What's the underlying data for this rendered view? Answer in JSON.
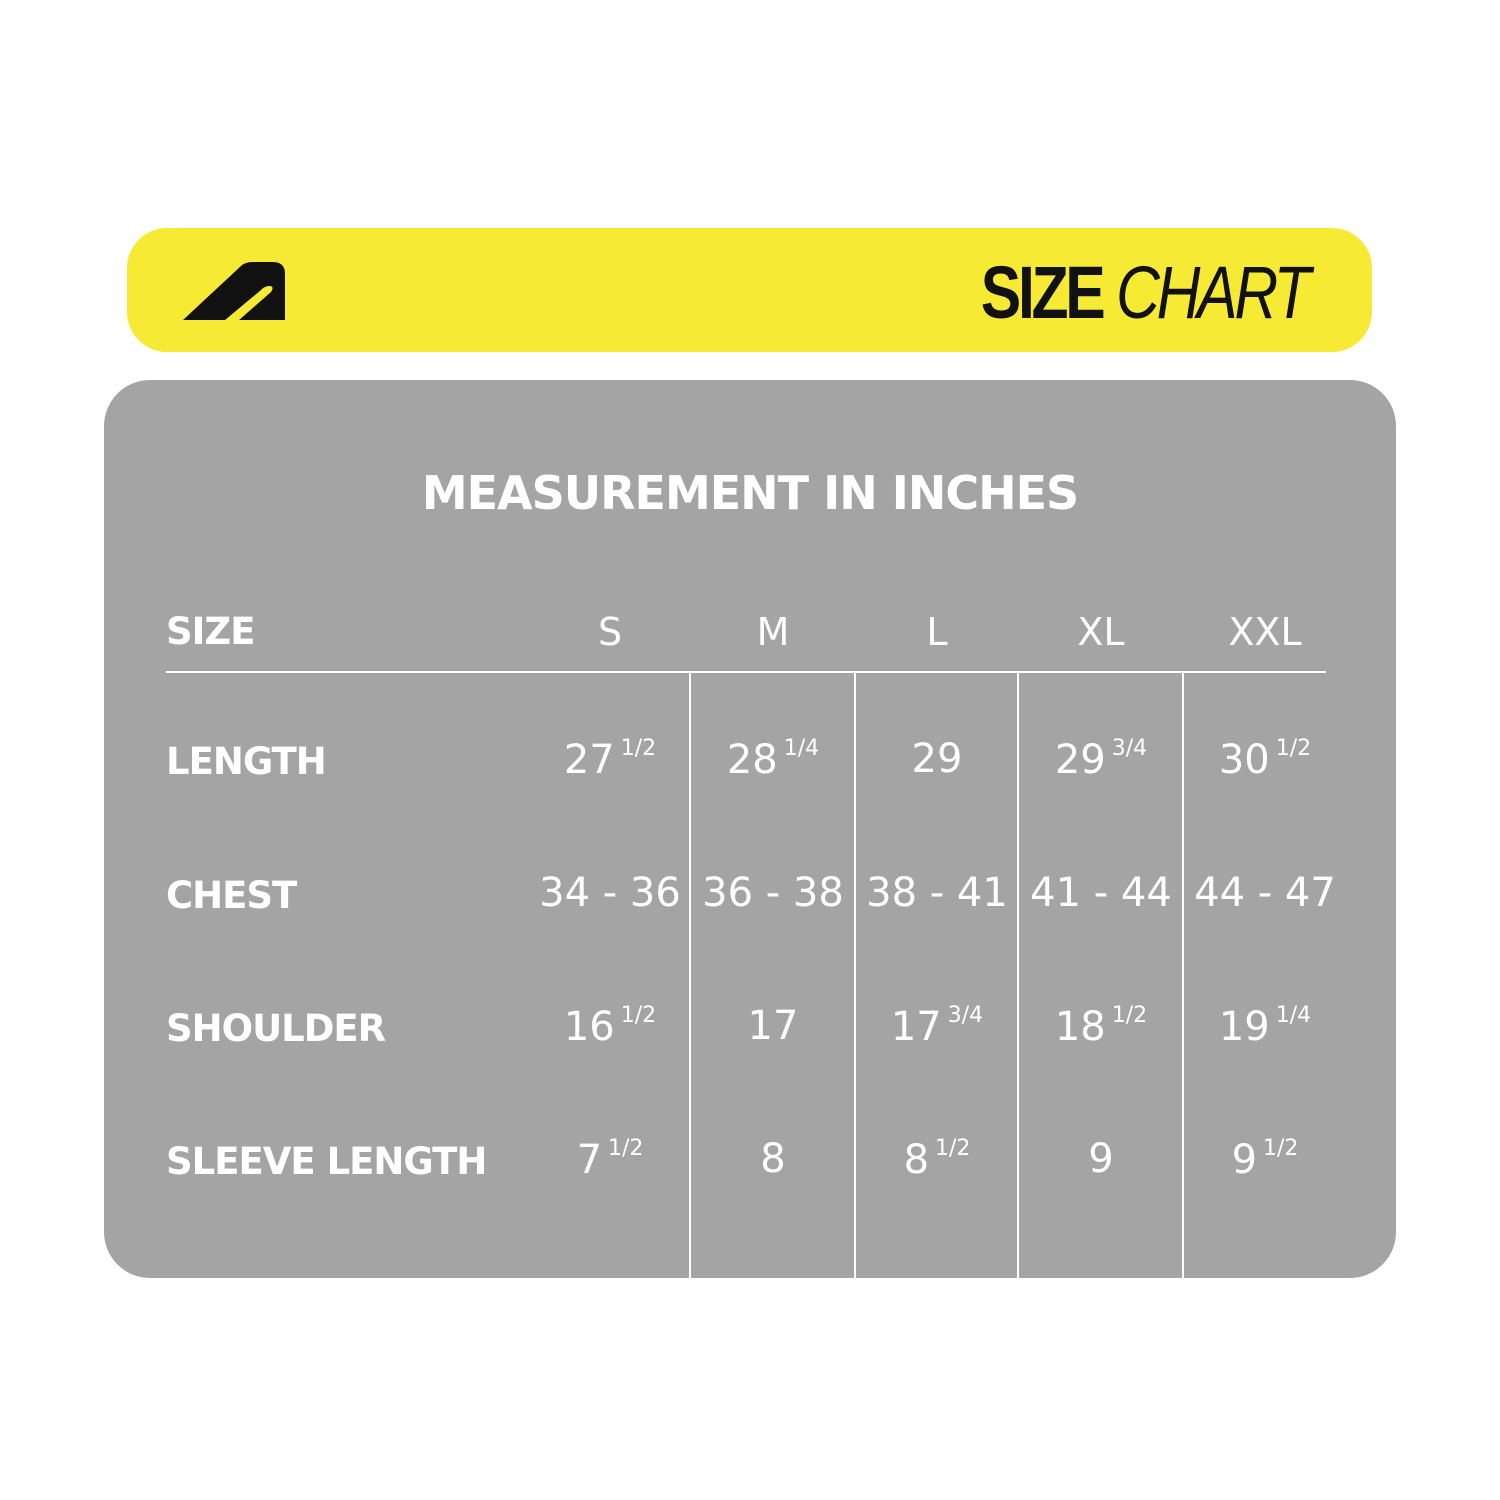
{
  "banner": {
    "title_bold": "SIZE",
    "title_italic": "CHART",
    "logo": "brand-a-logo",
    "color": "#f6ea34"
  },
  "panel": {
    "color": "#a4a4a4",
    "heading": "MEASUREMENT IN INCHES"
  },
  "table": {
    "header_label": "SIZE",
    "sizes": [
      "S",
      "M",
      "L",
      "XL",
      "XXL"
    ],
    "rows": [
      {
        "label": "LENGTH",
        "values": [
          {
            "whole": "27",
            "frac": "1/2"
          },
          {
            "whole": "28",
            "frac": "1/4"
          },
          {
            "whole": "29",
            "frac": ""
          },
          {
            "whole": "29",
            "frac": "3/4"
          },
          {
            "whole": "30",
            "frac": "1/2"
          }
        ]
      },
      {
        "label": "CHEST",
        "values": [
          {
            "whole": "34 - 36",
            "frac": ""
          },
          {
            "whole": "36 - 38",
            "frac": ""
          },
          {
            "whole": "38 - 41",
            "frac": ""
          },
          {
            "whole": "41 - 44",
            "frac": ""
          },
          {
            "whole": "44 - 47",
            "frac": ""
          }
        ]
      },
      {
        "label": "SHOULDER",
        "values": [
          {
            "whole": "16",
            "frac": "1/2"
          },
          {
            "whole": "17",
            "frac": ""
          },
          {
            "whole": "17",
            "frac": "3/4"
          },
          {
            "whole": "18",
            "frac": "1/2"
          },
          {
            "whole": "19",
            "frac": "1/4"
          }
        ]
      },
      {
        "label": "SLEEVE LENGTH",
        "values": [
          {
            "whole": "7",
            "frac": "1/2"
          },
          {
            "whole": "8",
            "frac": ""
          },
          {
            "whole": "8",
            "frac": "1/2"
          },
          {
            "whole": "9",
            "frac": ""
          },
          {
            "whole": "9",
            "frac": "1/2"
          }
        ]
      }
    ]
  }
}
